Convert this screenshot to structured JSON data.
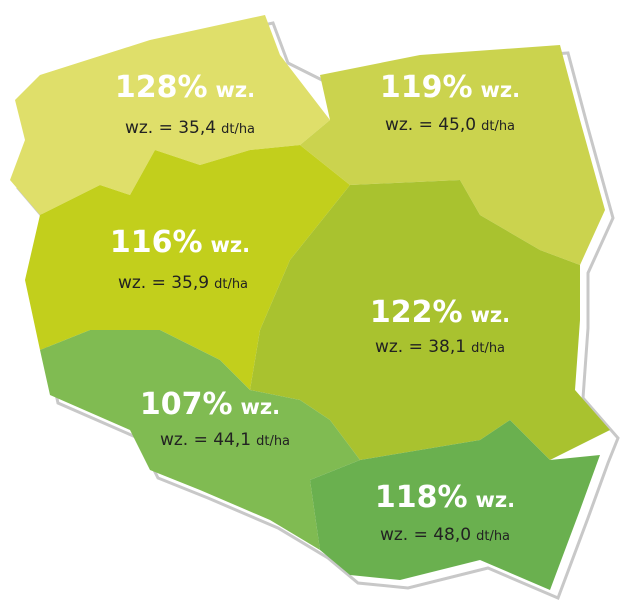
{
  "regions": [
    {
      "percent": "128%",
      "percent_unit": "wz.",
      "yield": "wz. = 35,4",
      "unit": "dt/ha"
    },
    {
      "percent": "119%",
      "percent_unit": "wz.",
      "yield": "wz. = 45,0",
      "unit": "dt/ha"
    },
    {
      "percent": "116%",
      "percent_unit": "wz.",
      "yield": "wz. = 35,9",
      "unit": "dt/ha"
    },
    {
      "percent": "122%",
      "percent_unit": "wz.",
      "yield": "wz. = 38,1",
      "unit": "dt/ha"
    },
    {
      "percent": "107%",
      "percent_unit": "wz.",
      "yield": "wz. = 44,1",
      "unit": "dt/ha"
    },
    {
      "percent": "118%",
      "percent_unit": "wz.",
      "yield": "wz. = 48,0",
      "unit": "dt/ha"
    }
  ]
}
